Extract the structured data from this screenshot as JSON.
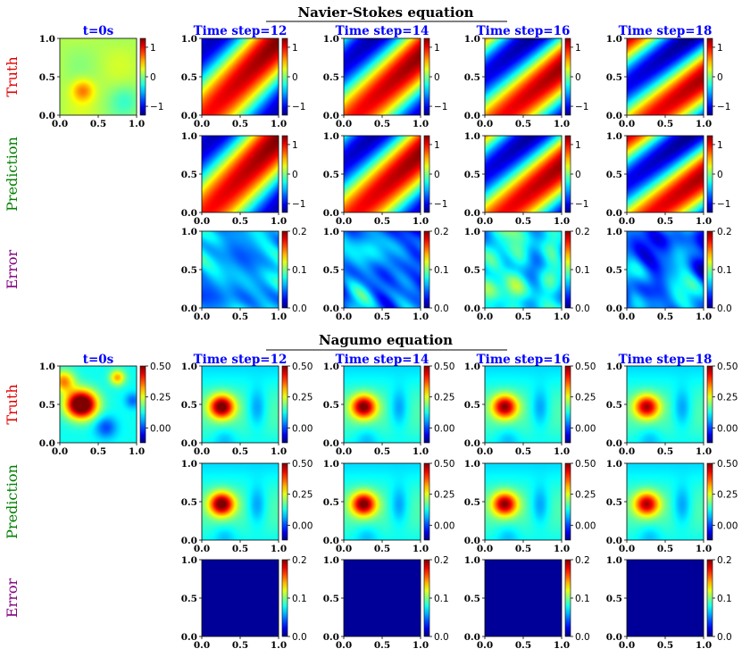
{
  "chart_data": [
    {
      "type": "heatmap",
      "title": "Navier-Stokes equation",
      "rows": [
        {
          "label": "Truth",
          "color": "#e00000"
        },
        {
          "label": "Prediction",
          "color": "#008000"
        },
        {
          "label": "Error",
          "color": "#800080"
        }
      ],
      "columns": [
        "t=0s",
        "Time step=12",
        "Time step=14",
        "Time step=16",
        "Time step=18"
      ],
      "column_title_color": "#0000ff",
      "xlim": [
        0.0,
        1.0
      ],
      "ylim": [
        0.0,
        1.0
      ],
      "x_ticks": [
        "0.0",
        "0.5",
        "1.0"
      ],
      "y_ticks": [
        "0.0",
        "0.5",
        "1.0"
      ],
      "field_colorbar": {
        "range": [
          -1.3,
          1.3
        ],
        "ticks": [
          {
            "value": 1,
            "label": "1"
          },
          {
            "value": 0,
            "label": "0"
          },
          {
            "value": -1,
            "label": "−1"
          }
        ]
      },
      "error_colorbar": {
        "range": [
          0.0,
          0.2
        ],
        "ticks": [
          {
            "value": 0.2,
            "label": "0.2"
          },
          {
            "value": 0.1,
            "label": "0.1"
          },
          {
            "value": 0.0,
            "label": "0.0"
          }
        ]
      },
      "colormap": "jet",
      "initial_condition_note": "smooth low-amplitude field, yellow patch near (0.3, 0.3)",
      "field_note": "diagonal band rotating toward top-right with time",
      "error_levels": [
        0.04,
        0.045,
        0.05,
        0.05
      ]
    },
    {
      "type": "heatmap",
      "title": "Nagumo equation",
      "rows": [
        {
          "label": "Truth",
          "color": "#e00000"
        },
        {
          "label": "Prediction",
          "color": "#008000"
        },
        {
          "label": "Error",
          "color": "#800080"
        }
      ],
      "columns": [
        "t=0s",
        "Time step=12",
        "Time step=14",
        "Time step=16",
        "Time step=18"
      ],
      "column_title_color": "#0000ff",
      "xlim": [
        0.0,
        1.0
      ],
      "ylim": [
        0.0,
        1.0
      ],
      "x_ticks": [
        "0.0",
        "0.5",
        "1.0"
      ],
      "y_ticks": [
        "0.0",
        "0.5",
        "1.0"
      ],
      "initial_colorbar": {
        "range": [
          -0.12,
          0.5
        ],
        "ticks": [
          {
            "value": 0.5,
            "label": "0.50"
          },
          {
            "value": 0.25,
            "label": "0.25"
          },
          {
            "value": 0.0,
            "label": "0.00"
          }
        ]
      },
      "field_colorbar": {
        "range": [
          -0.12,
          0.5
        ],
        "ticks": [
          {
            "value": 0.5,
            "label": "0.50"
          },
          {
            "value": 0.25,
            "label": "0.25"
          },
          {
            "value": 0.0,
            "label": "0.00"
          }
        ]
      },
      "error_colorbar": {
        "range": [
          0.0,
          0.2
        ],
        "ticks": [
          {
            "value": 0.2,
            "label": "0.2"
          },
          {
            "value": 0.1,
            "label": "0.1"
          },
          {
            "value": 0.0,
            "label": "0.0"
          }
        ]
      },
      "colormap": "jet",
      "initial_condition_note": "large red blob near (0.25, 0.5) with blue patches",
      "field_note": "red spot at (0.25, 0.45) slowly decaying",
      "error_levels": [
        0.005,
        0.005,
        0.005,
        0.005
      ]
    }
  ]
}
